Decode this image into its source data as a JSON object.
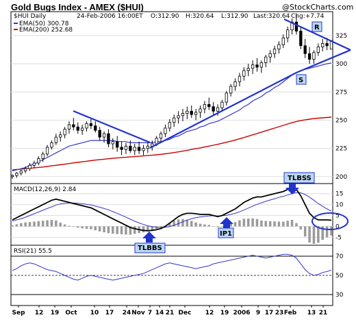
{
  "header": {
    "title": "Gold Bugs Index - AMEX ($HUI)",
    "watermark": "@StockCharts.com",
    "symbol_label": "$HUI Daily",
    "date": "24-Feb-2006 16:00ET",
    "open": "O:312.90",
    "high": "H:320.64",
    "low": "L:312.90",
    "last": "Last:320.64",
    "chg": "Chg:+7.74"
  },
  "legend": {
    "ema50": "EMA(50) 300.78",
    "ema200": "EMA(200) 252.68",
    "macd": "MACD(12,26,9) 2.84",
    "rsi": "RSI(21) 55.5"
  },
  "annotations": {
    "r": "R",
    "s": "S",
    "tlbss_top": "TLBSS",
    "tlbss_bottom": "TLBBS",
    "ip1": "IP1"
  },
  "colors": {
    "price": "#000000",
    "ema50": "#3333cc",
    "ema200": "#cc0000",
    "trendline": "#2233cc",
    "macd_signal": "#3333cc",
    "histogram": "#9a9a9a",
    "callout_bg": "#bcd8f5"
  },
  "chart_data": [
    {
      "type": "candlestick",
      "ylim": [
        195,
        345
      ],
      "y_ticks": [
        200,
        225,
        250,
        275,
        300,
        325
      ],
      "x_ticks": [
        "Sep",
        "12",
        "19",
        "Oct",
        "10",
        "17",
        "24",
        "Nov",
        "7",
        "14",
        "21",
        "Dec",
        "12",
        "19",
        "2006",
        "9",
        "17",
        "23",
        "Feb",
        "13",
        "21"
      ],
      "ohlc": [
        [
          200,
          202,
          198,
          201
        ],
        [
          201,
          204,
          199,
          203
        ],
        [
          203,
          206,
          201,
          205
        ],
        [
          205,
          209,
          203,
          207
        ],
        [
          207,
          212,
          205,
          210
        ],
        [
          210,
          214,
          208,
          212
        ],
        [
          212,
          218,
          210,
          216
        ],
        [
          216,
          222,
          213,
          220
        ],
        [
          220,
          228,
          218,
          226
        ],
        [
          226,
          232,
          224,
          230
        ],
        [
          230,
          238,
          228,
          235
        ],
        [
          235,
          240,
          231,
          237
        ],
        [
          237,
          244,
          234,
          242
        ],
        [
          242,
          249,
          238,
          246
        ],
        [
          246,
          252,
          241,
          244
        ],
        [
          244,
          248,
          238,
          241
        ],
        [
          241,
          246,
          237,
          243
        ],
        [
          243,
          249,
          240,
          247
        ],
        [
          247,
          251,
          242,
          245
        ],
        [
          245,
          249,
          239,
          241
        ],
        [
          241,
          244,
          232,
          235
        ],
        [
          235,
          240,
          230,
          238
        ],
        [
          238,
          242,
          226,
          229
        ],
        [
          229,
          234,
          224,
          231
        ],
        [
          231,
          236,
          222,
          226
        ],
        [
          226,
          231,
          219,
          224
        ],
        [
          224,
          230,
          220,
          227
        ],
        [
          227,
          232,
          221,
          223
        ],
        [
          223,
          229,
          219,
          226
        ],
        [
          226,
          231,
          220,
          223
        ],
        [
          223,
          228,
          219,
          225
        ],
        [
          225,
          230,
          221,
          227
        ],
        [
          227,
          232,
          223,
          229
        ],
        [
          229,
          236,
          227,
          234
        ],
        [
          234,
          240,
          231,
          238
        ],
        [
          238,
          246,
          235,
          243
        ],
        [
          243,
          251,
          240,
          248
        ],
        [
          248,
          255,
          244,
          252
        ],
        [
          252,
          258,
          247,
          254
        ],
        [
          254,
          260,
          249,
          256
        ],
        [
          256,
          262,
          251,
          258
        ],
        [
          258,
          263,
          252,
          255
        ],
        [
          255,
          260,
          250,
          257
        ],
        [
          257,
          263,
          252,
          260
        ],
        [
          260,
          267,
          256,
          264
        ],
        [
          264,
          270,
          259,
          262
        ],
        [
          262,
          266,
          255,
          258
        ],
        [
          258,
          264,
          254,
          261
        ],
        [
          261,
          268,
          258,
          266
        ],
        [
          266,
          276,
          263,
          274
        ],
        [
          274,
          282,
          271,
          280
        ],
        [
          280,
          287,
          276,
          284
        ],
        [
          284,
          292,
          280,
          289
        ],
        [
          289,
          297,
          285,
          294
        ],
        [
          294,
          300,
          289,
          296
        ],
        [
          296,
          303,
          291,
          299
        ],
        [
          299,
          305,
          293,
          297
        ],
        [
          297,
          303,
          292,
          301
        ],
        [
          301,
          308,
          297,
          306
        ],
        [
          306,
          312,
          301,
          309
        ],
        [
          309,
          316,
          305,
          313
        ],
        [
          313,
          320,
          309,
          317
        ],
        [
          317,
          326,
          314,
          323
        ],
        [
          323,
          333,
          319,
          330
        ],
        [
          330,
          340,
          326,
          337
        ],
        [
          337,
          343,
          326,
          329
        ],
        [
          329,
          333,
          313,
          316
        ],
        [
          316,
          322,
          305,
          309
        ],
        [
          309,
          315,
          300,
          304
        ],
        [
          304,
          312,
          300,
          310
        ],
        [
          310,
          318,
          307,
          315
        ],
        [
          315,
          322,
          311,
          318
        ],
        [
          318,
          323,
          312,
          316
        ],
        [
          312.9,
          320.64,
          312.9,
          320.64
        ]
      ],
      "ema50": [
        205,
        206,
        207,
        208,
        210,
        211,
        213,
        215,
        217,
        219,
        221,
        223,
        225,
        227,
        228,
        229,
        230,
        231,
        232,
        232,
        232,
        232,
        232,
        232,
        231,
        231,
        231,
        230,
        230,
        230,
        230,
        230,
        230,
        231,
        231,
        232,
        233,
        235,
        236,
        238,
        240,
        241,
        242,
        244,
        245,
        247,
        248,
        249,
        251,
        253,
        255,
        257,
        259,
        262,
        264,
        267,
        269,
        271,
        274,
        276,
        279,
        281,
        284,
        287,
        290,
        292,
        294,
        295,
        296,
        297,
        298,
        299,
        300,
        300.78
      ],
      "ema200": [
        206,
        206.3,
        206.6,
        207,
        207.3,
        207.7,
        208.1,
        208.5,
        209,
        209.5,
        210,
        210.5,
        211,
        211.6,
        212.1,
        212.6,
        213.1,
        213.6,
        214.1,
        214.6,
        215,
        215.4,
        215.8,
        216.2,
        216.5,
        216.8,
        217.1,
        217.4,
        217.7,
        218,
        218.3,
        218.6,
        218.9,
        219.3,
        219.7,
        220.2,
        220.7,
        221.3,
        221.9,
        222.6,
        223.3,
        224,
        224.7,
        225.4,
        226.2,
        227,
        227.8,
        228.6,
        229.5,
        230.4,
        231.4,
        232.4,
        233.5,
        234.6,
        235.8,
        237,
        238.2,
        239.4,
        240.6,
        241.8,
        243,
        244.2,
        245.4,
        246.6,
        247.8,
        248.8,
        249.6,
        250.3,
        250.9,
        251.4,
        251.8,
        252.1,
        252.4,
        252.68
      ]
    },
    {
      "type": "line",
      "ylim": [
        -8,
        19
      ],
      "y_ticks": [
        -5,
        0,
        5,
        10,
        15
      ],
      "macd": [
        3,
        4,
        5,
        6,
        7,
        8,
        9,
        10,
        11,
        12,
        12.5,
        12,
        11.5,
        11,
        10.5,
        10,
        9.5,
        9,
        8.5,
        7.5,
        6.5,
        5.5,
        4.5,
        3.5,
        2.5,
        1.5,
        0.5,
        -0.5,
        -1,
        -1.5,
        -1.8,
        -2,
        -1.8,
        -1.5,
        -1,
        0,
        1.5,
        3,
        4.5,
        5.5,
        6,
        6,
        5.8,
        5.5,
        5.5,
        5.5,
        5,
        4.5,
        5,
        6,
        7,
        8,
        9.5,
        11,
        12,
        13,
        13.5,
        13.5,
        14,
        14.5,
        15,
        15.5,
        16,
        17,
        18,
        17,
        14,
        10,
        6,
        4,
        3,
        3,
        3,
        2.84
      ],
      "signal": [
        2.5,
        3,
        3.5,
        4.2,
        5,
        5.8,
        6.6,
        7.4,
        8.2,
        9,
        9.8,
        10.3,
        10.6,
        10.7,
        10.7,
        10.6,
        10.4,
        10.1,
        9.8,
        9.3,
        8.8,
        8.2,
        7.6,
        6.8,
        6,
        5.1,
        4.2,
        3.3,
        2.4,
        1.6,
        0.9,
        0.3,
        -0.1,
        -0.4,
        -0.5,
        -0.4,
        -0.1,
        0.5,
        1.3,
        2.1,
        2.9,
        3.5,
        4,
        4.3,
        4.6,
        4.8,
        4.9,
        4.8,
        4.9,
        5.1,
        5.5,
        6,
        6.7,
        7.5,
        8.4,
        9.3,
        10.1,
        10.8,
        11.5,
        12.1,
        12.7,
        13.3,
        13.8,
        14.4,
        15,
        15.5,
        15.4,
        14.6,
        13.4,
        12,
        10.5,
        9.2,
        8,
        7
      ]
    },
    {
      "type": "line",
      "ylim": [
        20,
        80
      ],
      "y_ticks": [
        30,
        50,
        70
      ],
      "rsi": [
        55,
        57,
        60,
        62,
        63,
        62,
        60,
        58,
        56,
        55,
        54,
        52,
        50,
        48,
        46,
        45,
        47,
        49,
        50,
        49,
        48,
        47,
        46,
        45,
        46,
        47,
        48,
        49,
        50,
        51,
        52,
        54,
        56,
        58,
        60,
        62,
        63,
        62,
        61,
        60,
        59,
        58,
        57,
        58,
        59,
        60,
        62,
        63,
        64,
        65,
        66,
        67,
        68,
        69,
        70,
        71,
        70,
        69,
        68,
        69,
        70,
        71,
        72,
        72,
        71,
        68,
        62,
        56,
        52,
        50,
        51,
        53,
        54,
        55.5
      ]
    }
  ]
}
